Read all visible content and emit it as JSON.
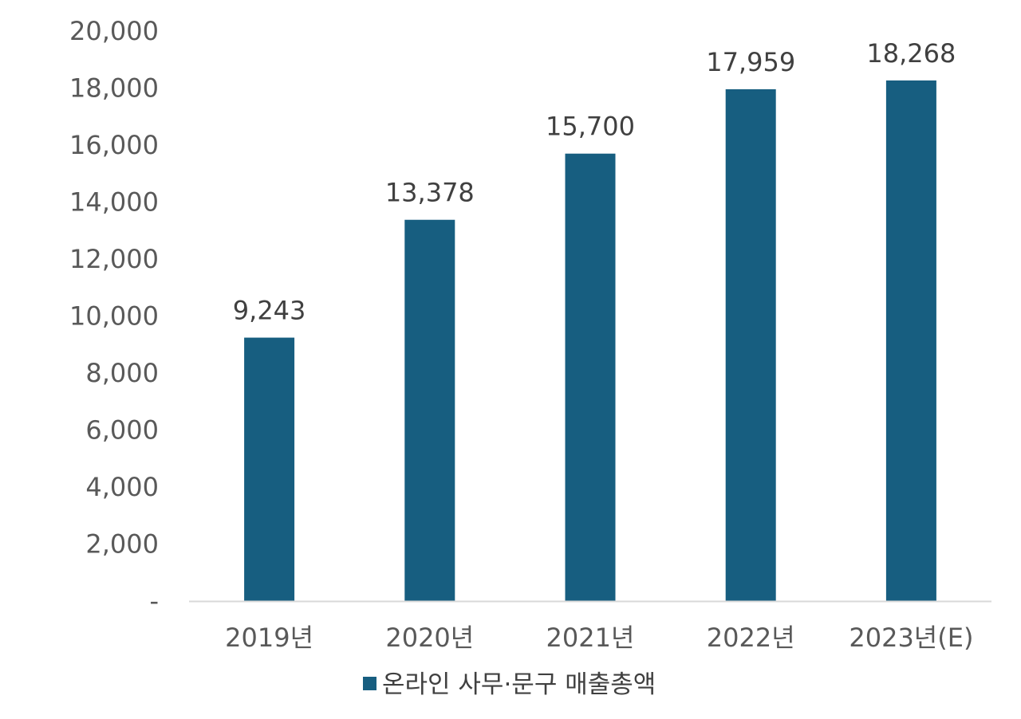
{
  "chart_data": {
    "type": "bar",
    "title": "",
    "xlabel": "",
    "ylabel": "",
    "categories": [
      "2019년",
      "2020년",
      "2021년",
      "2022년",
      "2023년(E)"
    ],
    "series": [
      {
        "name": "온라인 사무·문구 매출총액",
        "values": [
          9243,
          13378,
          15700,
          17959,
          18268
        ],
        "labels": [
          "9,243",
          "13,378",
          "15,700",
          "17,959",
          "18,268"
        ]
      }
    ],
    "ylim": [
      0,
      20000
    ],
    "y_ticks": [
      0,
      2000,
      4000,
      6000,
      8000,
      10000,
      12000,
      14000,
      16000,
      18000,
      20000
    ],
    "y_tick_labels": [
      "-",
      "2,000",
      "4,000",
      "6,000",
      "8,000",
      "10,000",
      "12,000",
      "14,000",
      "16,000",
      "18,000",
      "20,000"
    ],
    "grid": false,
    "legend_position": "bottom",
    "colors": {
      "bar": "#175E80",
      "axis": "#D9D9D9"
    }
  }
}
